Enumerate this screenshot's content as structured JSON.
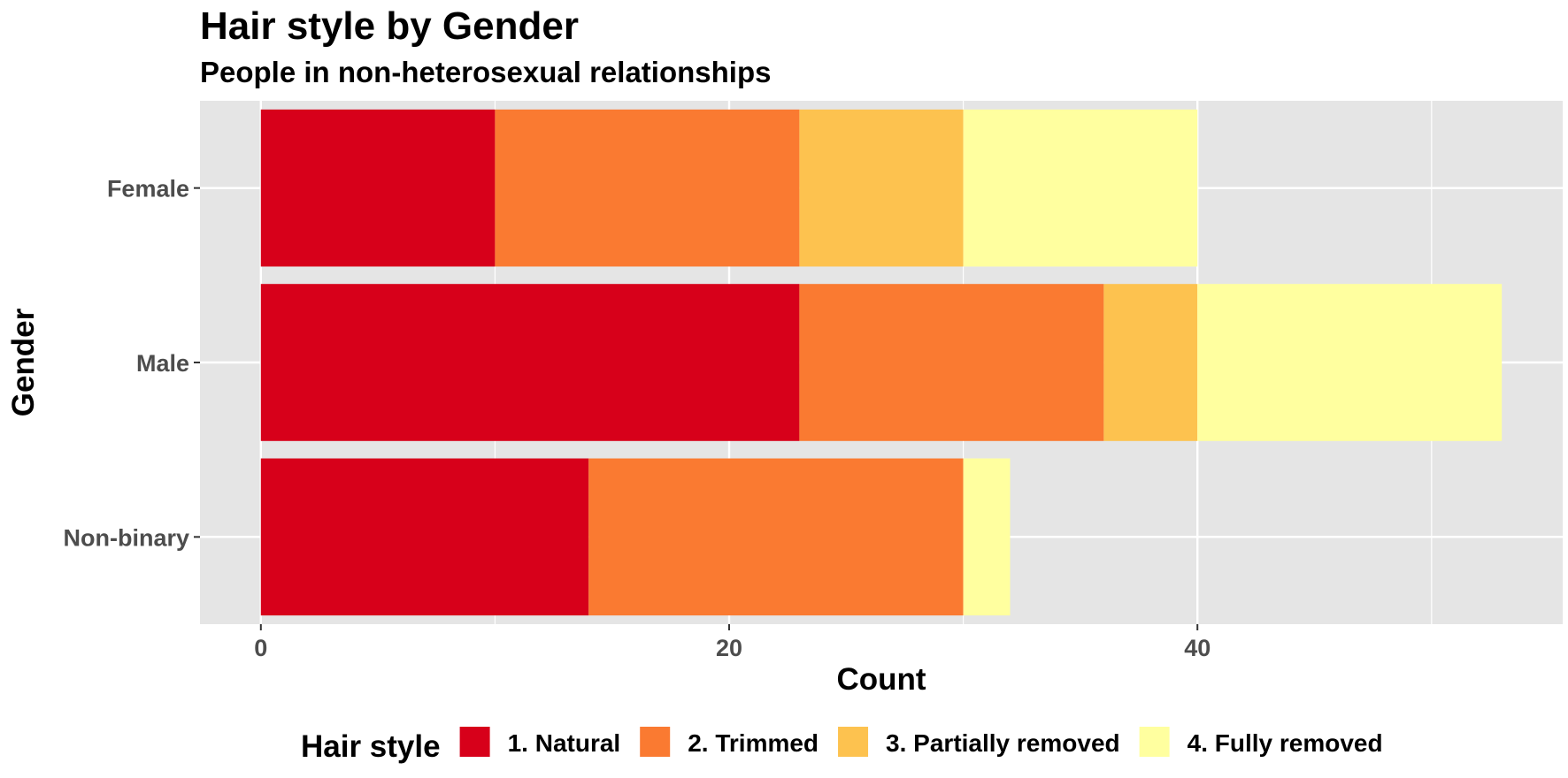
{
  "chart_data": {
    "type": "bar",
    "orientation": "horizontal",
    "stacked": true,
    "title": "Hair style by Gender",
    "subtitle": "People in non-heterosexual relationships",
    "xlabel": "Count",
    "ylabel": "Gender",
    "categories": [
      "Female",
      "Male",
      "Non-binary"
    ],
    "x_ticks": [
      0,
      20,
      40
    ],
    "xlim": [
      -2.6,
      55.6
    ],
    "grid": true,
    "legend_title": "Hair style",
    "legend_position": "bottom",
    "series": [
      {
        "name": "1. Natural",
        "color": "#d7001a",
        "values": [
          10,
          23,
          14
        ]
      },
      {
        "name": "2. Trimmed",
        "color": "#fa7a31",
        "values": [
          13,
          13,
          16
        ]
      },
      {
        "name": "3. Partially removed",
        "color": "#fdc24f",
        "values": [
          7,
          4,
          0
        ]
      },
      {
        "name": "4. Fully removed",
        "color": "#ffff9f",
        "values": [
          10,
          13,
          2
        ]
      }
    ],
    "panel_background": "#e5e5e5"
  }
}
